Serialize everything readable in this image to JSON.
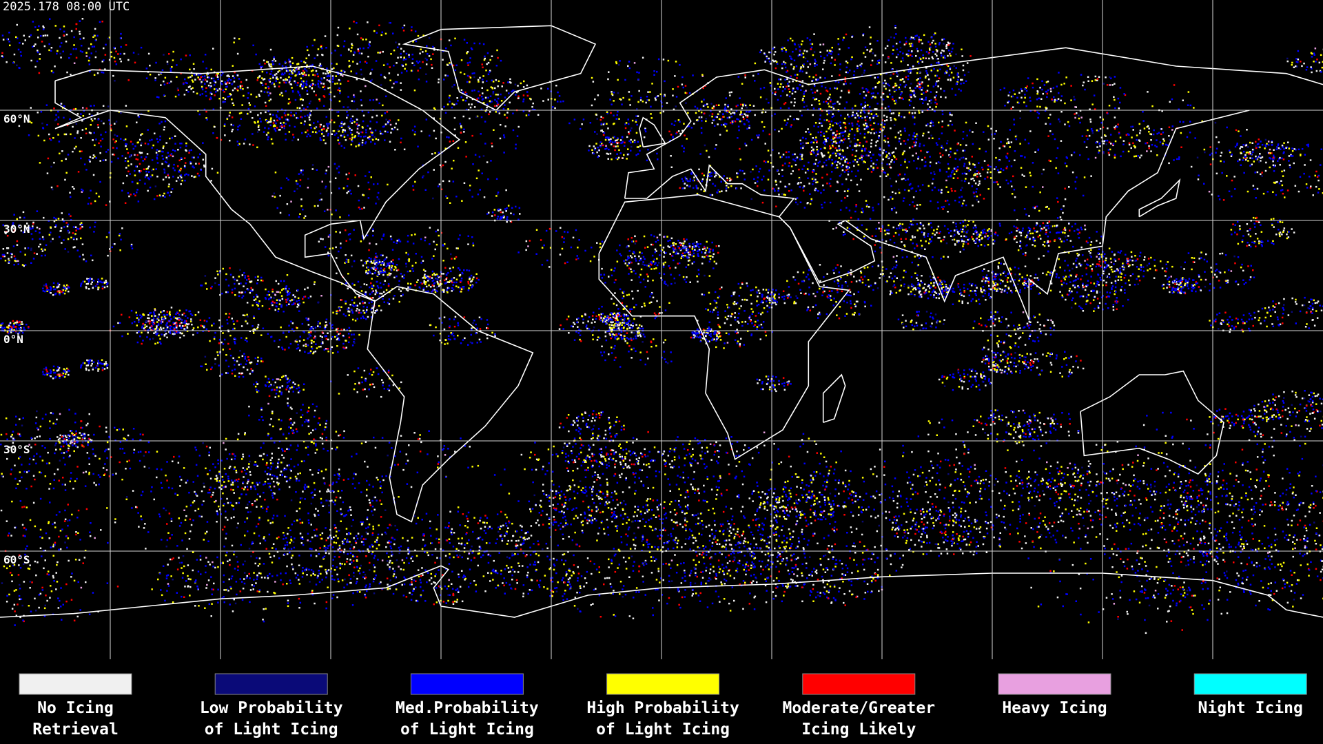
{
  "header": {
    "timestamp": "2025.178 08:00 UTC"
  },
  "map": {
    "latitude_labels": [
      "60°N",
      "30°N",
      "0°N",
      "30°S",
      "60°S"
    ]
  },
  "legend": [
    {
      "label": [
        "No Icing",
        "Retrieval"
      ],
      "color": "#f0f0f0"
    },
    {
      "label": [
        "Low Probability",
        "of Light Icing"
      ],
      "color": "#0a0a78"
    },
    {
      "label": [
        "Med.Probability",
        "of Light Icing"
      ],
      "color": "#0000ff"
    },
    {
      "label": [
        "High Probability",
        "of Light Icing"
      ],
      "color": "#ffff00"
    },
    {
      "label": [
        "Moderate/Greater",
        "Icing Likely"
      ],
      "color": "#ff0000"
    },
    {
      "label": [
        "Heavy Icing"
      ],
      "color": "#e8a0e0"
    },
    {
      "label": [
        "Night Icing"
      ],
      "color": "#00ffff"
    }
  ]
}
